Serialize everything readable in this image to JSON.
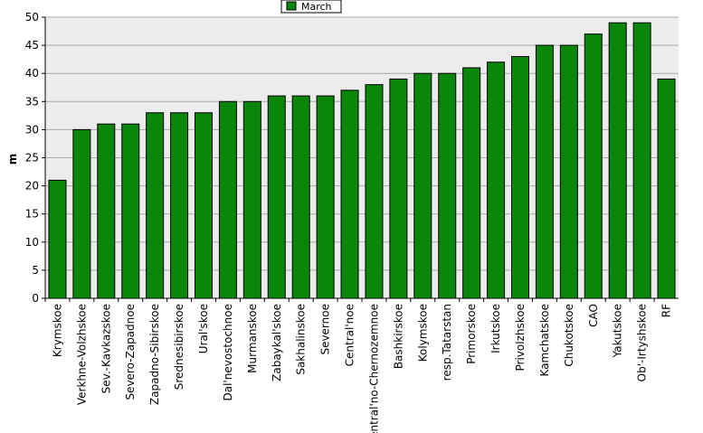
{
  "chart_data": {
    "type": "bar",
    "xlabel": "",
    "ylabel": "m",
    "ylim": [
      0,
      50
    ],
    "yticks": [
      0,
      5,
      10,
      15,
      20,
      25,
      30,
      35,
      40,
      45,
      50
    ],
    "grid": true,
    "legend": "top-center",
    "colors": {
      "bar": "#0a860a",
      "plot_bg": "#ececec"
    },
    "categories": [
      "Krymskoe",
      "Verkhne-Volzhskoe",
      "Sev.-Kavkazskoe",
      "Severo-Zapadnoe",
      "Zapadno-Sibirskoe",
      "Srednesibirskoe",
      "Ural'skoe",
      "Dal'nevostochnoe",
      "Murmanskoe",
      "Zabaykal'skoe",
      "Sakhalinskoe",
      "Severnoe",
      "Central'noe",
      "Central'no-Chernozemnoe",
      "Bashkirskoe",
      "Kolymskoe",
      "resp.Tatarstan",
      "Primorskoe",
      "Irkutskoe",
      "Privolzhskoe",
      "Kamchatskoe",
      "Chukotskoe",
      "CAO",
      "Yakutskoe",
      "Ob'-Irtyshskoe",
      "RF"
    ],
    "series": [
      {
        "name": "March",
        "values": [
          21,
          30,
          31,
          31,
          33,
          33,
          33,
          35,
          35,
          36,
          36,
          36,
          37,
          38,
          39,
          40,
          40,
          41,
          42,
          43,
          45,
          45,
          47,
          49,
          49,
          39
        ]
      }
    ]
  }
}
